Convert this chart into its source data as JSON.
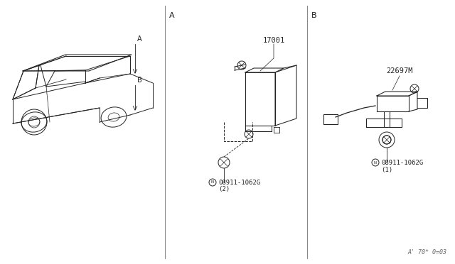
{
  "bg_color": "#ffffff",
  "line_color": "#1a1a1a",
  "section_a_label": "A",
  "section_b_label": "B",
  "part_17001_label": "17001",
  "part_22697M_label": "22697M",
  "part_bolt_a_label": "N 08911-1062G",
  "part_bolt_a_sub": "(2)",
  "part_bolt_b_label": "N 08911-1062G",
  "part_bolt_b_sub": "(1)",
  "footer": "A' 70* 0=03",
  "divider_color": "#888888",
  "car_color": "#222222",
  "part_color": "#222222"
}
